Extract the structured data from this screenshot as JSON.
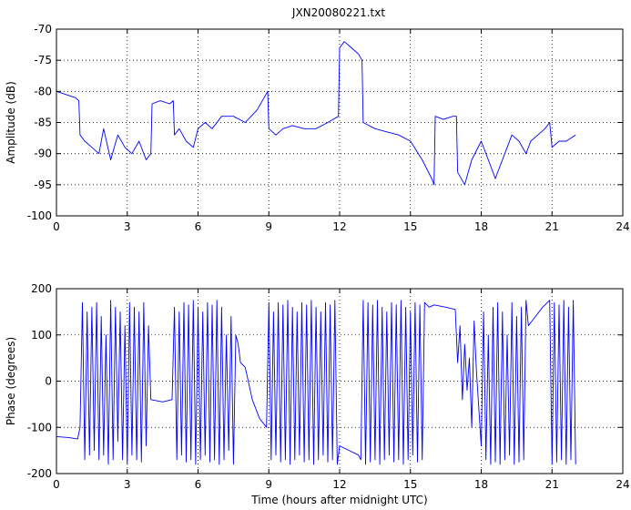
{
  "figure": {
    "title": "JXN20080221.txt",
    "xlabel": "Time (hours after midnight UTC)",
    "series_color": "#0000ff"
  },
  "chart_data": [
    {
      "type": "line",
      "title": "JXN20080221.txt",
      "xlabel": "",
      "ylabel": "Amplitude (dB)",
      "xlim": [
        0,
        24
      ],
      "ylim": [
        -100,
        -70
      ],
      "xticks": [
        0,
        3,
        6,
        9,
        12,
        15,
        18,
        21,
        24
      ],
      "yticks": [
        -100,
        -95,
        -90,
        -85,
        -80,
        -75,
        -70
      ],
      "grid": true,
      "series": [
        {
          "color": "#0000ff",
          "x": [
            0,
            0.4,
            0.8,
            0.95,
            1.0,
            1.2,
            1.5,
            1.8,
            2.0,
            2.3,
            2.6,
            2.9,
            3.2,
            3.5,
            3.8,
            4.0,
            4.05,
            4.4,
            4.8,
            4.95,
            5.0,
            5.2,
            5.5,
            5.8,
            6.0,
            6.3,
            6.6,
            7.0,
            7.5,
            8.0,
            8.5,
            8.8,
            8.95,
            9.0,
            9.3,
            9.6,
            10.0,
            10.5,
            11.0,
            11.5,
            11.95,
            12.0,
            12.2,
            12.5,
            12.8,
            12.95,
            13.0,
            13.5,
            14.0,
            14.5,
            15.0,
            15.5,
            15.9,
            16.0,
            16.05,
            16.4,
            16.8,
            16.95,
            17.0,
            17.3,
            17.6,
            18.0,
            18.3,
            18.6,
            19.0,
            19.3,
            19.6,
            19.9,
            20.1,
            20.4,
            20.7,
            20.9,
            21.0,
            21.3,
            21.6,
            22.0
          ],
          "y": [
            -80,
            -80.5,
            -81,
            -81.5,
            -87,
            -88,
            -89,
            -90,
            -86,
            -91,
            -87,
            -89,
            -90,
            -88,
            -91,
            -90,
            -82,
            -81.5,
            -82,
            -81.5,
            -87,
            -86,
            -88,
            -89,
            -86,
            -85,
            -86,
            -84,
            -84,
            -85,
            -83,
            -81,
            -80,
            -86,
            -87,
            -86,
            -85.5,
            -86,
            -86,
            -85,
            -84,
            -73,
            -72,
            -73,
            -74,
            -75,
            -85,
            -86,
            -86.5,
            -87,
            -88,
            -91,
            -94,
            -95,
            -84,
            -84.5,
            -84,
            -84,
            -93,
            -95,
            -91,
            -88,
            -91,
            -94,
            -90,
            -87,
            -88,
            -90,
            -88,
            -87,
            -86,
            -85,
            -89,
            -88,
            -88,
            -87
          ]
        }
      ]
    },
    {
      "type": "line",
      "xlabel": "Time (hours after midnight UTC)",
      "ylabel": "Phase (degrees)",
      "xlim": [
        0,
        24
      ],
      "ylim": [
        -200,
        200
      ],
      "xticks": [
        0,
        3,
        6,
        9,
        12,
        15,
        18,
        21,
        24
      ],
      "yticks": [
        -200,
        -100,
        0,
        100,
        200
      ],
      "grid": true,
      "series": [
        {
          "color": "#0000ff",
          "x": [
            0,
            0.5,
            0.9,
            1.0,
            1.1,
            1.2,
            1.3,
            1.4,
            1.5,
            1.6,
            1.7,
            1.8,
            1.9,
            2.0,
            2.1,
            2.2,
            2.3,
            2.4,
            2.5,
            2.6,
            2.7,
            2.8,
            2.9,
            3.0,
            3.1,
            3.2,
            3.3,
            3.4,
            3.5,
            3.6,
            3.7,
            3.8,
            3.9,
            4.0,
            4.5,
            4.9,
            5.0,
            5.1,
            5.2,
            5.3,
            5.4,
            5.5,
            5.6,
            5.7,
            5.8,
            5.9,
            6.0,
            6.1,
            6.2,
            6.3,
            6.4,
            6.5,
            6.6,
            6.7,
            6.8,
            6.9,
            7.0,
            7.1,
            7.2,
            7.3,
            7.4,
            7.5,
            7.6,
            7.7,
            7.8,
            8.0,
            8.3,
            8.6,
            8.9,
            9.0,
            9.1,
            9.2,
            9.3,
            9.4,
            9.5,
            9.6,
            9.7,
            9.8,
            9.9,
            10.0,
            10.1,
            10.2,
            10.3,
            10.4,
            10.5,
            10.6,
            10.7,
            10.8,
            10.9,
            11.0,
            11.1,
            11.2,
            11.3,
            11.4,
            11.5,
            11.6,
            11.7,
            11.8,
            11.9,
            12.0,
            12.4,
            12.8,
            12.9,
            13.0,
            13.1,
            13.2,
            13.3,
            13.4,
            13.5,
            13.6,
            13.7,
            13.8,
            13.9,
            14.0,
            14.1,
            14.2,
            14.3,
            14.4,
            14.5,
            14.6,
            14.7,
            14.8,
            14.9,
            15.0,
            15.1,
            15.2,
            15.3,
            15.4,
            15.5,
            15.6,
            15.8,
            16.0,
            16.5,
            16.9,
            17.0,
            17.1,
            17.2,
            17.3,
            17.4,
            17.5,
            17.6,
            17.7,
            17.8,
            17.9,
            18.0,
            18.1,
            18.2,
            18.3,
            18.4,
            18.5,
            18.6,
            18.7,
            18.8,
            18.9,
            19.0,
            19.1,
            19.2,
            19.3,
            19.4,
            19.5,
            19.6,
            19.7,
            19.8,
            19.9,
            20.0,
            20.3,
            20.6,
            20.9,
            21.0,
            21.1,
            21.2,
            21.3,
            21.4,
            21.5,
            21.6,
            21.7,
            21.8,
            21.9,
            22.0
          ],
          "y": [
            -120,
            -122,
            -125,
            -100,
            170,
            -170,
            150,
            -160,
            160,
            -150,
            170,
            -170,
            140,
            -160,
            100,
            -180,
            175,
            -170,
            160,
            -130,
            150,
            -170,
            120,
            -180,
            170,
            -160,
            160,
            -170,
            150,
            -175,
            170,
            -140,
            120,
            -40,
            -45,
            -40,
            160,
            -170,
            150,
            -160,
            170,
            -175,
            165,
            -170,
            175,
            -180,
            160,
            -170,
            150,
            -160,
            170,
            -175,
            165,
            -170,
            175,
            -180,
            160,
            -170,
            100,
            -150,
            140,
            -180,
            100,
            80,
            40,
            30,
            -40,
            -80,
            -100,
            170,
            -170,
            150,
            -160,
            170,
            -175,
            165,
            -170,
            175,
            -180,
            160,
            -170,
            150,
            -160,
            170,
            -175,
            165,
            -170,
            175,
            -180,
            160,
            -170,
            150,
            -160,
            170,
            -175,
            165,
            -170,
            175,
            -180,
            -140,
            -150,
            -160,
            -170,
            175,
            -180,
            170,
            -175,
            165,
            -170,
            175,
            -180,
            160,
            -170,
            150,
            -160,
            170,
            -175,
            165,
            -170,
            175,
            -180,
            160,
            -170,
            150,
            -160,
            170,
            -175,
            165,
            -170,
            170,
            160,
            165,
            160,
            155,
            40,
            120,
            -40,
            80,
            -20,
            50,
            -100,
            130,
            20,
            -60,
            -140,
            150,
            -170,
            100,
            -180,
            160,
            -175,
            170,
            -180,
            150,
            -170,
            100,
            -160,
            170,
            -180,
            140,
            -175,
            160,
            -170,
            175,
            120,
            140,
            160,
            175,
            -180,
            170,
            -175,
            165,
            -170,
            175,
            -180,
            160,
            -170,
            175,
            -180
          ]
        }
      ]
    }
  ]
}
